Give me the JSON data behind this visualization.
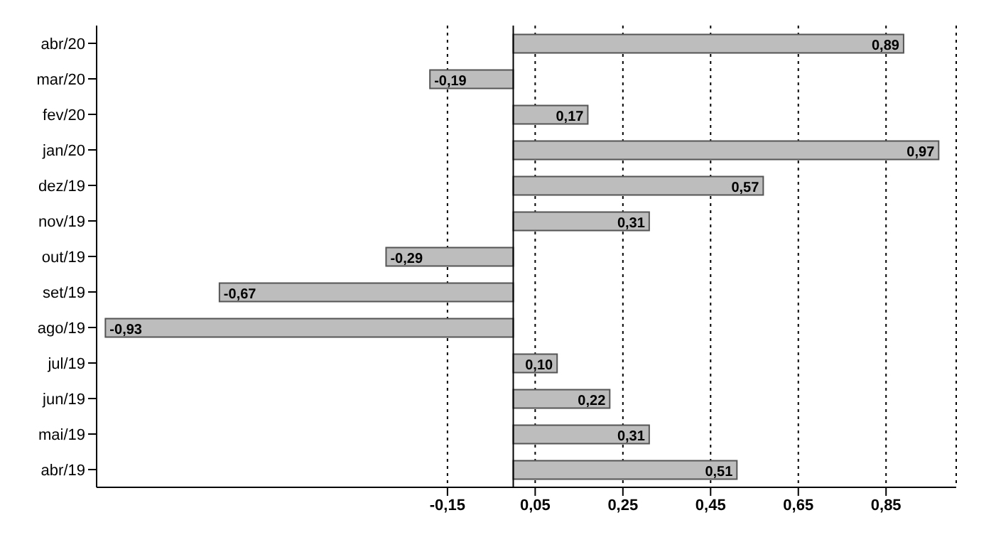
{
  "chart_data": {
    "type": "bar",
    "orientation": "horizontal",
    "categories": [
      "abr/20",
      "mar/20",
      "fev/20",
      "jan/20",
      "dez/19",
      "nov/19",
      "out/19",
      "set/19",
      "ago/19",
      "jul/19",
      "jun/19",
      "mai/19",
      "abr/19"
    ],
    "values": [
      0.89,
      -0.19,
      0.17,
      0.97,
      0.57,
      0.31,
      -0.29,
      -0.67,
      -0.93,
      0.1,
      0.22,
      0.31,
      0.51
    ],
    "value_labels": [
      "0,89",
      "-0,19",
      "0,17",
      "0,97",
      "0,57",
      "0,31",
      "-0,29",
      "-0,67",
      "-0,93",
      "0,10",
      "0,22",
      "0,31",
      "0,51"
    ],
    "color": "#bdbdbd",
    "xlim": [
      -0.95,
      1.01
    ],
    "xticks": [
      {
        "value": -0.15,
        "label": "-0,15"
      },
      {
        "value": 0.05,
        "label": "0,05"
      },
      {
        "value": 0.25,
        "label": "0,25"
      },
      {
        "value": 0.45,
        "label": "0,45"
      },
      {
        "value": 0.65,
        "label": "0,65"
      },
      {
        "value": 0.85,
        "label": "0,85"
      }
    ],
    "grid": "x"
  }
}
